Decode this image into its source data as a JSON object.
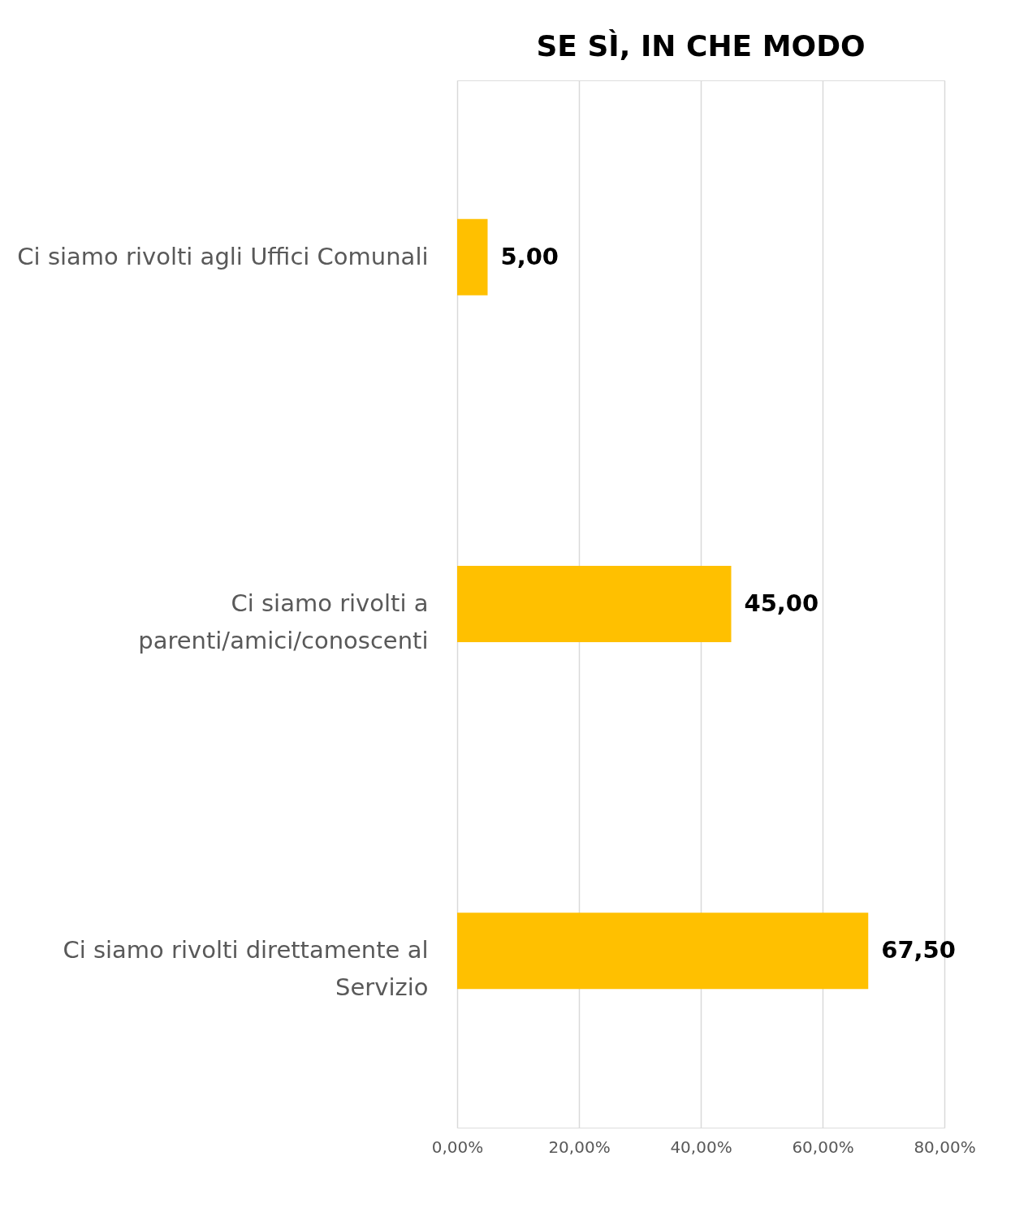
{
  "chart_data": {
    "type": "bar",
    "orientation": "horizontal",
    "title": "SE SÌ, IN CHE MODO",
    "categories": [
      "Ci siamo rivolti agli Uffici Comunali",
      "Ci siamo rivolti a\nparenti/amici/conoscenti",
      "Ci siamo rivolti direttamente al\nServizio"
    ],
    "values": [
      5,
      45,
      67.5
    ],
    "value_labels": [
      "5,00",
      "45,00",
      "67,50"
    ],
    "color": "#ffc000",
    "xlim": [
      0,
      80
    ],
    "xticks": [
      {
        "value": 0,
        "label": "0,00%"
      },
      {
        "value": 20,
        "label": "20,00%"
      },
      {
        "value": 40,
        "label": "40,00%"
      },
      {
        "value": 60,
        "label": "60,00%"
      },
      {
        "value": 80,
        "label": "80,00%"
      }
    ],
    "grid": "x"
  }
}
